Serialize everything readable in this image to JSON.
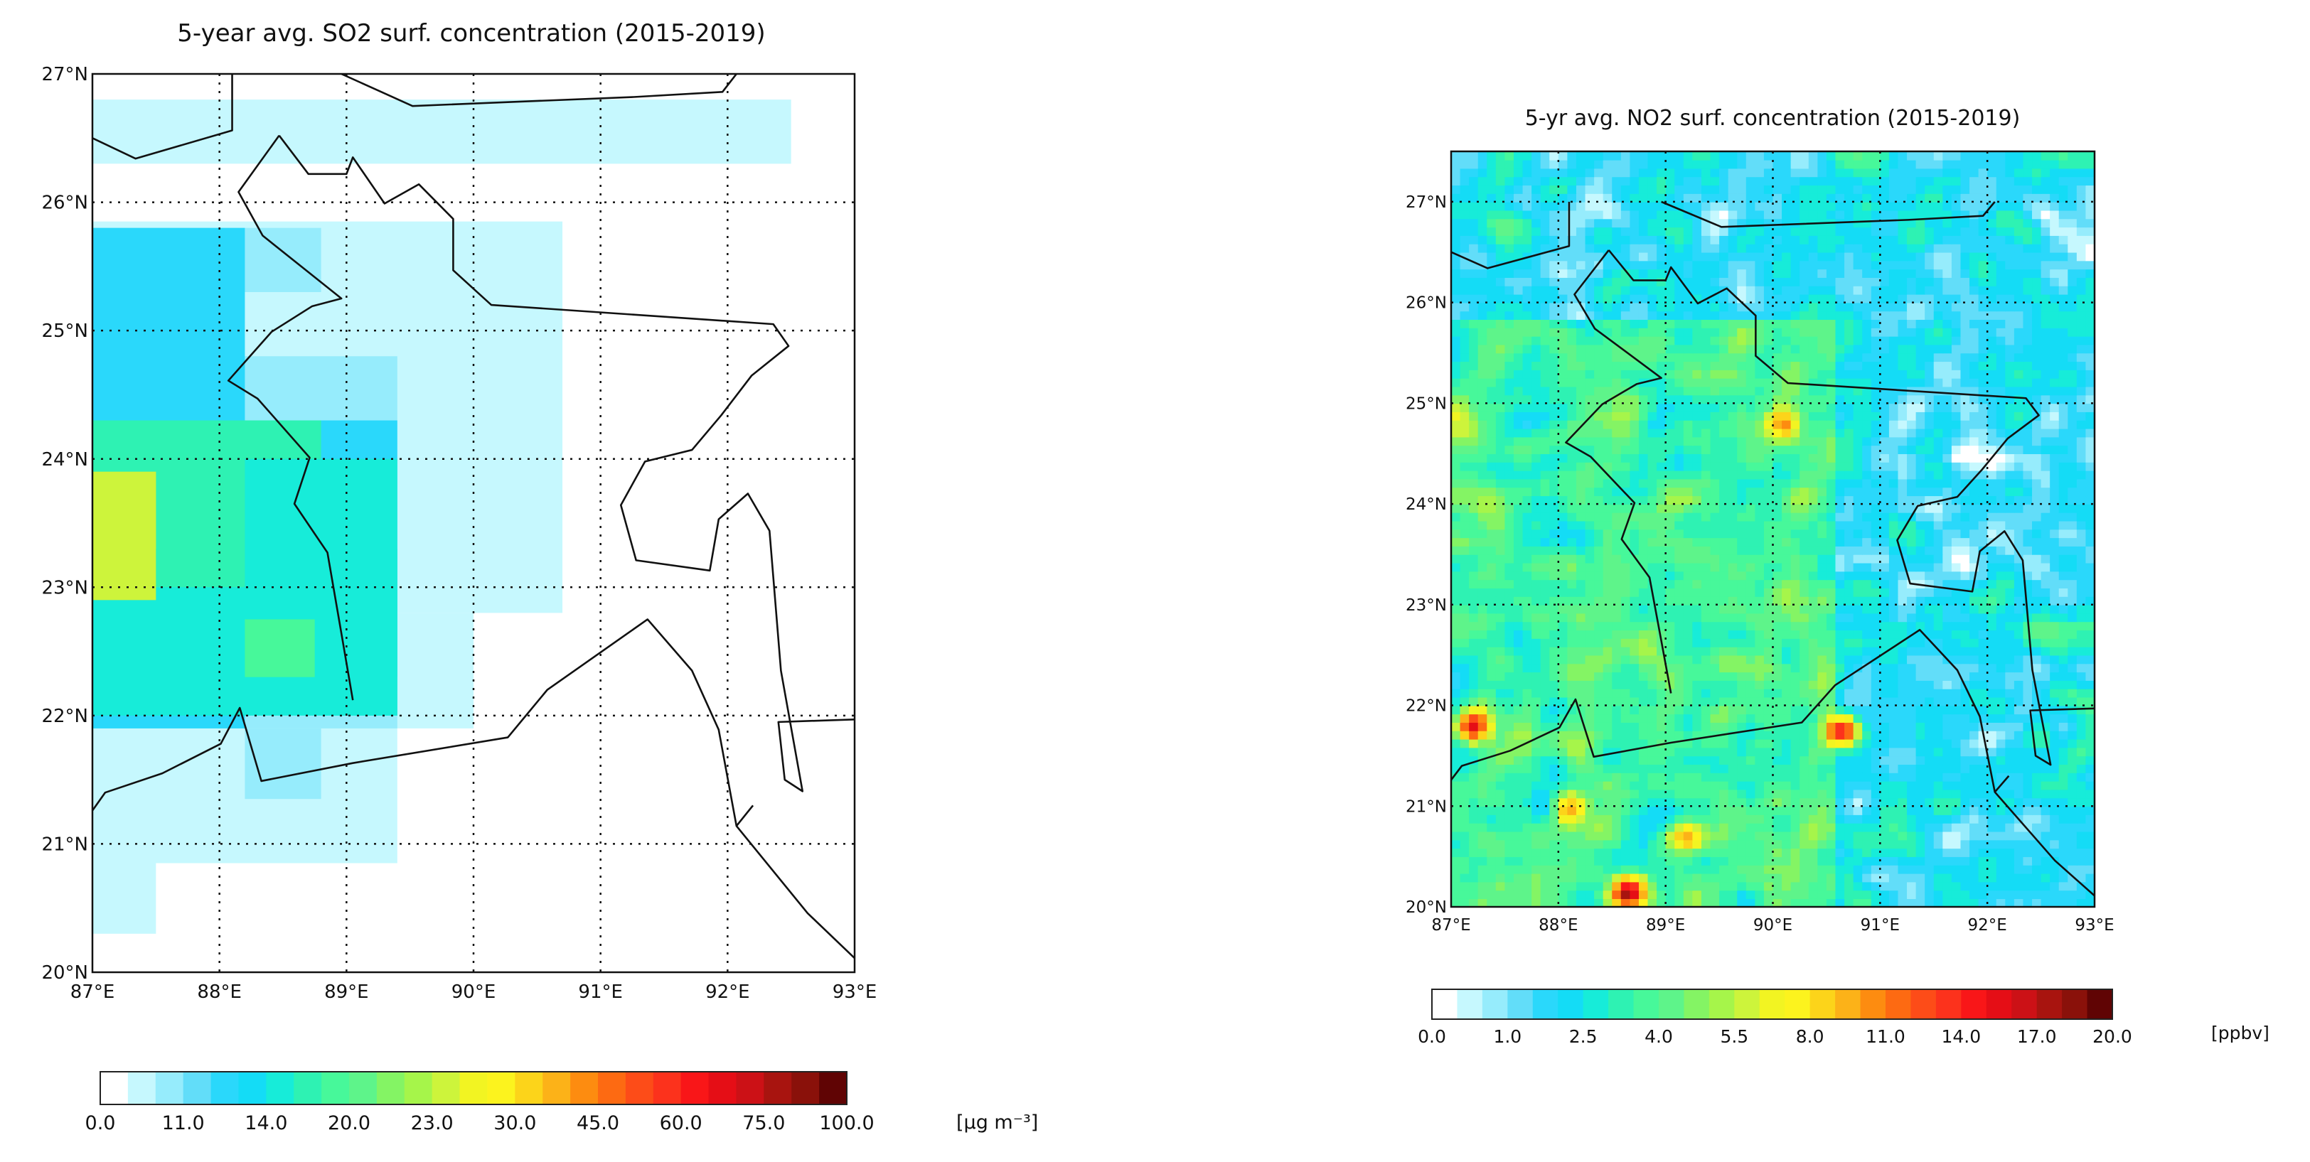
{
  "chart_data": [
    {
      "type": "heatmap",
      "title": "5-year avg. SO2 surf. concentration (2015-2019)",
      "xlim": [
        87,
        93
      ],
      "ylim": [
        20,
        27
      ],
      "x_ticks": [
        "87°E",
        "88°E",
        "89°E",
        "90°E",
        "91°E",
        "92°E",
        "93°E"
      ],
      "y_ticks": [
        "20°N",
        "21°N",
        "22°N",
        "23°N",
        "24°N",
        "25°N",
        "26°N",
        "27°N"
      ],
      "grid": true,
      "colorbar": {
        "labels": [
          "0.0",
          "11.0",
          "14.0",
          "20.0",
          "23.0",
          "30.0",
          "45.0",
          "60.0",
          "75.0",
          "100.0"
        ],
        "levels": [
          0,
          11,
          14,
          20,
          23,
          30,
          45,
          60,
          75,
          100
        ],
        "unit": "[μg m⁻³]"
      },
      "cells": [
        {
          "lon": [
            87,
            92.5
          ],
          "lat": [
            26.3,
            26.8
          ],
          "value": 5
        },
        {
          "lon": [
            87,
            90.0
          ],
          "lat": [
            25.8,
            26.3
          ],
          "value": 0
        },
        {
          "lon": [
            87,
            90.7
          ],
          "lat": [
            22.8,
            25.85
          ],
          "value": 5
        },
        {
          "lon": [
            87,
            90.0
          ],
          "lat": [
            21.9,
            22.8
          ],
          "value": 5
        },
        {
          "lon": [
            87,
            89.4
          ],
          "lat": [
            20.85,
            21.9
          ],
          "value": 5
        },
        {
          "lon": [
            87,
            87.5
          ],
          "lat": [
            20.3,
            20.85
          ],
          "value": 5
        },
        {
          "lon": [
            87,
            89.4
          ],
          "lat": [
            21.9,
            24.8
          ],
          "value": 9
        },
        {
          "lon": [
            87,
            88.8
          ],
          "lat": [
            25.3,
            25.8
          ],
          "value": 10
        },
        {
          "lon": [
            87,
            88.2
          ],
          "lat": [
            21.9,
            25.8
          ],
          "value": 12
        },
        {
          "lon": [
            88.2,
            89.4
          ],
          "lat": [
            22.3,
            24.3
          ],
          "value": 12.5
        },
        {
          "lon": [
            88.2,
            88.8
          ],
          "lat": [
            21.35,
            21.9
          ],
          "value": 10
        },
        {
          "lon": [
            87,
            89.4
          ],
          "lat": [
            22.0,
            23.0
          ],
          "value": 14
        },
        {
          "lon": [
            87,
            88.8
          ],
          "lat": [
            23.0,
            24.3
          ],
          "value": 16
        },
        {
          "lon": [
            88.2,
            89.4
          ],
          "lat": [
            23.0,
            24.0
          ],
          "value": 15
        },
        {
          "lon": [
            88.8,
            89.4
          ],
          "lat": [
            22.0,
            23.3
          ],
          "value": 15.5
        },
        {
          "lon": [
            87,
            87.5
          ],
          "lat": [
            22.9,
            23.9
          ],
          "value": 23
        },
        {
          "lon": [
            87,
            87.5
          ],
          "lat": [
            23.3,
            23.9
          ],
          "value": 25
        },
        {
          "lon": [
            88.2,
            88.75
          ],
          "lat": [
            22.3,
            22.75
          ],
          "value": 19
        }
      ]
    },
    {
      "type": "heatmap",
      "title": "5-yr avg. NO2 surf. concentration (2015-2019)",
      "xlim": [
        87,
        93
      ],
      "ylim": [
        20,
        27.5
      ],
      "x_ticks": [
        "87°E",
        "88°E",
        "89°E",
        "90°E",
        "91°E",
        "92°E",
        "93°E"
      ],
      "y_ticks": [
        "20°N",
        "21°N",
        "22°N",
        "23°N",
        "24°N",
        "25°N",
        "26°N",
        "27°N"
      ],
      "grid": true,
      "colorbar": {
        "labels": [
          "0.0",
          "1.0",
          "2.5",
          "4.0",
          "5.5",
          "8.0",
          "11.0",
          "14.0",
          "17.0",
          "20.0"
        ],
        "levels": [
          0,
          1,
          2.5,
          4,
          5.5,
          8,
          11,
          14,
          17,
          20
        ],
        "unit": "[ppbv]"
      },
      "hotspots": [
        {
          "lon": 87.2,
          "lat": 21.8,
          "value": 13
        },
        {
          "lon": 90.65,
          "lat": 21.75,
          "value": 12
        },
        {
          "lon": 88.65,
          "lat": 20.15,
          "value": 14
        },
        {
          "lon": 89.2,
          "lat": 20.7,
          "value": 6
        },
        {
          "lon": 88.1,
          "lat": 21.0,
          "value": 7
        },
        {
          "lon": 90.1,
          "lat": 24.8,
          "value": 6
        }
      ]
    }
  ],
  "colors": [
    "#ffffff",
    "#c6f8fe",
    "#96ecfc",
    "#62ddf9",
    "#2ad8fb",
    "#14dcf6",
    "#17ecd9",
    "#2ef2b3",
    "#47f89a",
    "#5ef48a",
    "#84f464",
    "#a6f54a",
    "#cdf43b",
    "#f2f422",
    "#fcf31e",
    "#fcd41a",
    "#fcb218",
    "#fd8c10",
    "#fd6a12",
    "#fd4c18",
    "#fc321c",
    "#f91618",
    "#e50e16",
    "#cc1116",
    "#a8140f",
    "#8a110a",
    "#600404"
  ]
}
